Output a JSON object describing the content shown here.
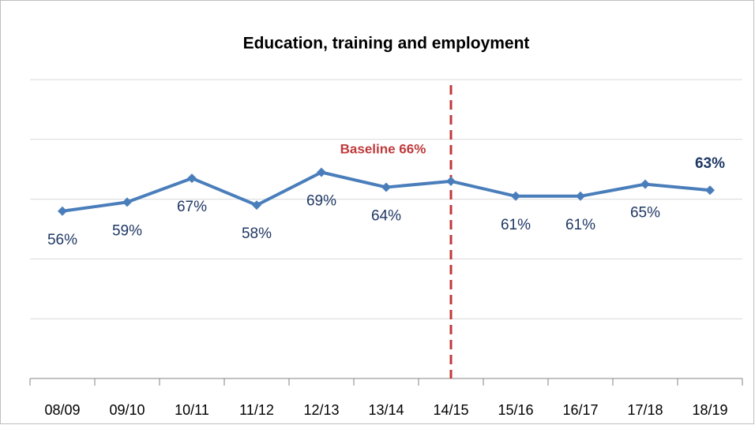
{
  "chart_data": {
    "type": "line",
    "title": "Education, training and employment",
    "categories": [
      "08/09",
      "09/10",
      "10/11",
      "11/12",
      "12/13",
      "13/14",
      "14/15",
      "15/16",
      "16/17",
      "17/18",
      "18/19"
    ],
    "series": [
      {
        "color": "#4a7ebb",
        "values": [
          56,
          59,
          67,
          58,
          69,
          64,
          66,
          61,
          61,
          65,
          63
        ],
        "value_labels": [
          "56%",
          "59%",
          "67%",
          "58%",
          "69%",
          "64%",
          "Baseline 66%",
          "61%",
          "61%",
          "65%",
          "63%"
        ]
      }
    ],
    "vline": {
      "category": "14/15",
      "color": "#c0393b"
    },
    "ylim": [
      0,
      100
    ],
    "yticks": [
      0,
      20,
      40,
      60,
      80,
      100
    ],
    "grid": true
  }
}
